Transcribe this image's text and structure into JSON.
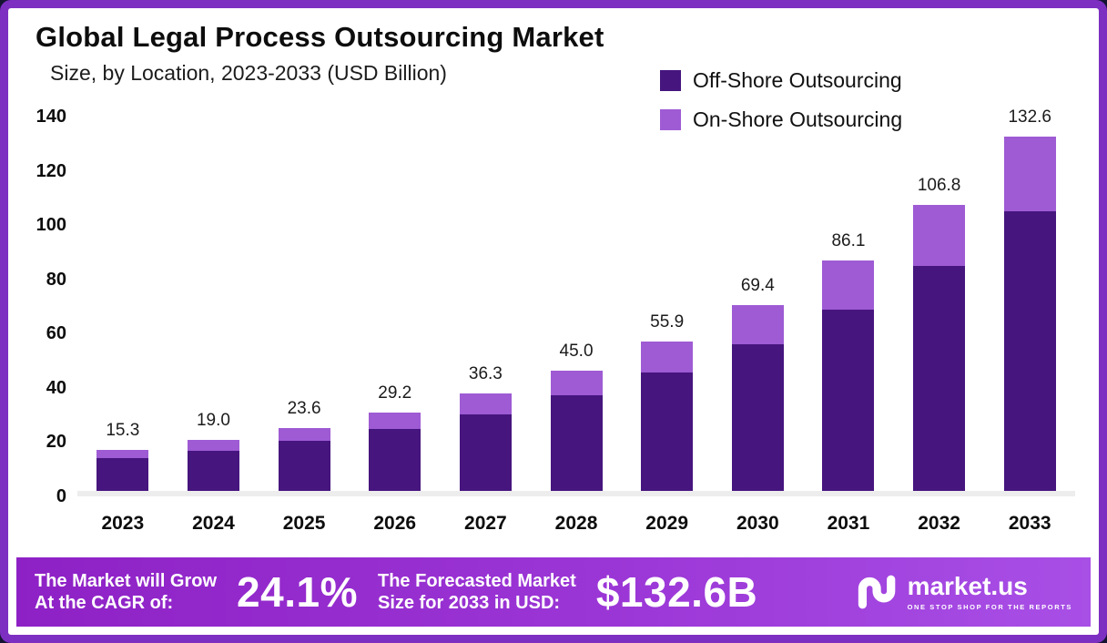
{
  "header": {
    "title": "Global Legal Process Outsourcing Market",
    "subtitle": "Size, by Location, 2023-2033 (USD Billion)"
  },
  "legend": [
    {
      "label": "Off-Shore Outsourcing",
      "color": "#46157e"
    },
    {
      "label": "On-Shore Outsourcing",
      "color": "#9e5bd4"
    }
  ],
  "chart_data": {
    "type": "bar",
    "stacked": true,
    "title": "Global Legal Process Outsourcing Market Size, by Location, 2023-2033 (USD Billion)",
    "categories": [
      "2023",
      "2024",
      "2025",
      "2026",
      "2027",
      "2028",
      "2029",
      "2030",
      "2031",
      "2032",
      "2033"
    ],
    "series": [
      {
        "name": "Off-Shore Outsourcing",
        "color": "#46157e",
        "values": [
          12.2,
          15.1,
          18.7,
          23.2,
          28.7,
          35.6,
          44.2,
          54.8,
          67.9,
          84.2,
          104.5
        ]
      },
      {
        "name": "On-Shore Outsourcing",
        "color": "#9e5bd4",
        "values": [
          3.1,
          3.9,
          4.9,
          6.0,
          7.6,
          9.4,
          11.7,
          14.6,
          18.2,
          22.6,
          28.1
        ]
      }
    ],
    "totals": [
      15.3,
      19.0,
      23.6,
      29.2,
      36.3,
      45.0,
      55.9,
      69.4,
      86.1,
      106.8,
      132.6
    ],
    "total_labels": [
      "15.3",
      "19.0",
      "23.6",
      "29.2",
      "36.3",
      "45.0",
      "55.9",
      "69.4",
      "86.1",
      "106.8",
      "132.6"
    ],
    "ylim": [
      0,
      140
    ],
    "yticks": [
      0,
      20,
      40,
      60,
      80,
      100,
      120,
      140
    ],
    "grid": false,
    "legend_position": "top-right"
  },
  "footer": {
    "cagr_label_line1": "The Market will Grow",
    "cagr_label_line2": "At the CAGR of:",
    "cagr_value": "24.1%",
    "forecast_label_line1": "The Forecasted Market",
    "forecast_label_line2": "Size for 2033 in USD:",
    "forecast_value": "$132.6B",
    "brand": "market.us",
    "brand_tagline": "ONE STOP SHOP FOR THE REPORTS"
  }
}
